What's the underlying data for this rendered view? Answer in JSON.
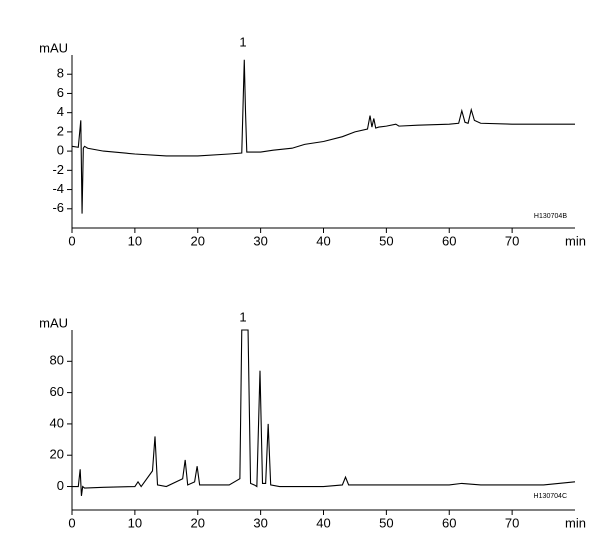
{
  "chart_data": [
    {
      "type": "line",
      "y_label": "mAU",
      "x_label": "min",
      "peak_label": "1",
      "sample_id": "H130704B",
      "x": [
        0,
        1,
        1.4,
        1.6,
        1.8,
        2.0,
        2.5,
        5,
        10,
        15,
        20,
        25,
        27,
        27.4,
        27.6,
        27.8,
        28.2,
        30,
        32,
        35,
        37,
        40,
        43,
        45,
        47,
        47.4,
        47.7,
        48,
        48.3,
        48.8,
        50,
        51.5,
        52,
        55,
        60,
        61.5,
        62,
        62.5,
        63,
        63.5,
        64,
        65,
        70,
        75,
        80
      ],
      "values": [
        0.5,
        0.4,
        3.2,
        -6.5,
        0.3,
        0.5,
        0.3,
        0,
        -0.3,
        -0.5,
        -0.5,
        -0.3,
        -0.2,
        9.5,
        4,
        -0.1,
        -0.1,
        -0.1,
        0.1,
        0.3,
        0.7,
        1,
        1.5,
        2,
        2.3,
        3.7,
        2.5,
        3.4,
        2.4,
        2.5,
        2.6,
        2.8,
        2.6,
        2.7,
        2.8,
        2.9,
        4.2,
        3,
        2.9,
        4.3,
        3.2,
        2.9,
        2.8,
        2.8,
        2.8
      ],
      "color": "#000000",
      "xlim": [
        0,
        80
      ],
      "xticks": [
        0,
        10,
        20,
        30,
        40,
        50,
        60,
        70
      ],
      "ylim": [
        -8,
        10
      ],
      "yticks": [
        -6,
        -4,
        -2,
        0,
        2,
        4,
        6,
        8
      ]
    },
    {
      "type": "line",
      "y_label": "mAU",
      "x_label": "min",
      "peak_label": "1",
      "sample_id": "H130704C",
      "x": [
        0,
        1,
        1.3,
        1.5,
        1.7,
        2,
        5,
        10,
        10.5,
        11,
        12.8,
        13.2,
        13.6,
        15,
        17.6,
        18,
        18.4,
        19.5,
        19.9,
        20.3,
        25,
        26.7,
        27,
        28,
        28.4,
        29,
        29.4,
        29.9,
        30.3,
        30.8,
        31.2,
        31.6,
        33,
        35,
        40,
        43,
        43.5,
        44,
        47,
        50,
        55,
        60,
        62,
        65,
        70,
        75,
        80
      ],
      "values": [
        0,
        0,
        11,
        -6,
        0,
        -1,
        -0.5,
        0,
        3,
        0,
        10,
        32,
        1,
        0,
        5,
        17,
        1,
        3,
        13,
        1,
        1,
        5,
        100,
        100,
        2,
        1,
        0,
        74,
        2,
        2,
        40,
        1,
        0,
        0,
        0,
        1,
        6,
        1,
        1,
        1,
        1,
        1,
        2,
        1,
        1,
        1,
        3
      ],
      "color": "#000000",
      "xlim": [
        0,
        80
      ],
      "xticks": [
        0,
        10,
        20,
        30,
        40,
        50,
        60,
        70
      ],
      "ylim": [
        -15,
        100
      ],
      "yticks": [
        0,
        20,
        40,
        60,
        80
      ]
    }
  ]
}
